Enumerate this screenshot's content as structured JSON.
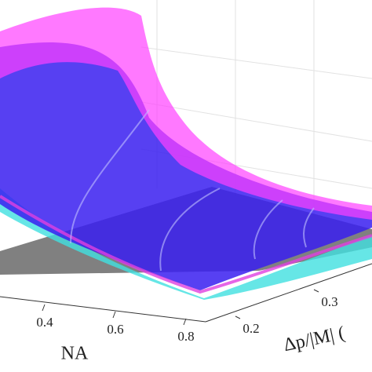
{
  "chart_data": {
    "type": "surface",
    "xlabel": "NA",
    "ylabel": "Δp/|M| (",
    "xticks": [
      0.4,
      0.6,
      0.8
    ],
    "yticks": [
      0.2,
      0.3
    ],
    "grid": true
  }
}
